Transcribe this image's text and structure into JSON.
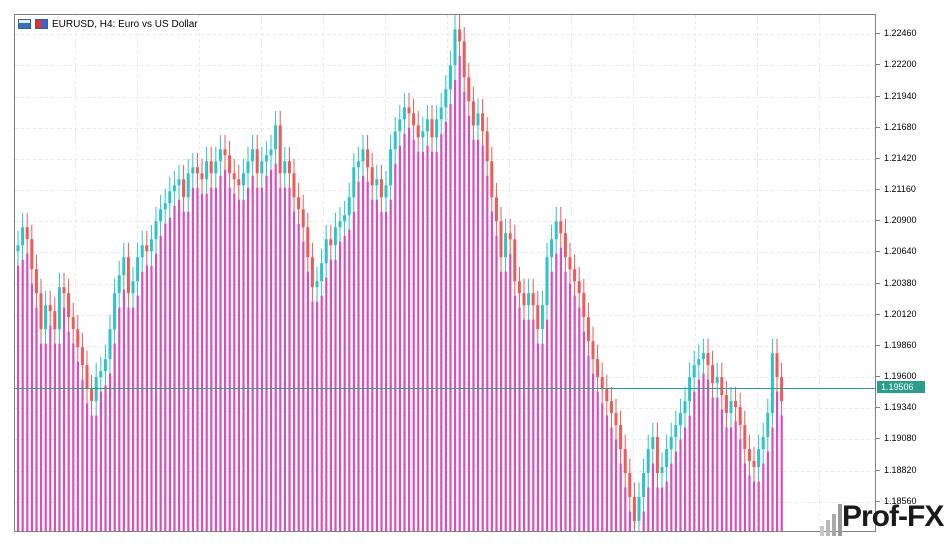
{
  "header": {
    "symbol_title": "EURUSD, H4:  Euro vs US Dollar"
  },
  "colors": {
    "bull": "#2ec4c4",
    "bear": "#ec5a5a",
    "volume": "#d63bb5",
    "grid": "#e8e8e8",
    "price_line": "#2a9d8f"
  },
  "price_tag": "1.19506",
  "logo": {
    "text": "Prof-FX"
  },
  "chart_data": {
    "type": "bar",
    "instrument": "EURUSD",
    "timeframe": "H4",
    "y_ticks": [
      "1.22460",
      "1.22200",
      "1.21940",
      "1.21680",
      "1.21420",
      "1.21160",
      "1.20900",
      "1.20640",
      "1.20380",
      "1.20120",
      "1.19860",
      "1.19600",
      "1.19340",
      "1.19080",
      "1.18820",
      "1.18560"
    ],
    "ylim": [
      1.183,
      1.2262
    ],
    "current_price": 1.19506,
    "grid": true,
    "close": [
      1.207,
      1.2085,
      1.2075,
      1.205,
      1.203,
      1.2,
      1.202,
      1.2015,
      1.2,
      1.2035,
      1.203,
      1.201,
      1.2,
      1.1985,
      1.197,
      1.195,
      1.194,
      1.196,
      1.1965,
      1.1975,
      1.2,
      1.203,
      1.2045,
      1.206,
      1.203,
      1.204,
      1.206,
      1.207,
      1.2065,
      1.2075,
      1.209,
      1.21,
      1.2105,
      1.2115,
      1.212,
      1.2125,
      1.211,
      1.213,
      1.2135,
      1.213,
      1.2125,
      1.214,
      1.213,
      1.214,
      1.215,
      1.2145,
      1.213,
      1.2125,
      1.212,
      1.213,
      1.214,
      1.215,
      1.213,
      1.214,
      1.2145,
      1.215,
      1.217,
      1.213,
      1.214,
      1.213,
      1.211,
      1.21,
      1.2085,
      1.206,
      1.2035,
      1.204,
      1.2055,
      1.2075,
      1.207,
      1.2085,
      1.209,
      1.2095,
      1.211,
      1.2135,
      1.214,
      1.215,
      1.2135,
      1.212,
      1.2125,
      1.211,
      1.212,
      1.215,
      1.2165,
      1.2175,
      1.2185,
      1.218,
      1.217,
      1.216,
      1.2165,
      1.2175,
      1.216,
      1.2175,
      1.2185,
      1.22,
      1.222,
      1.225,
      1.224,
      1.221,
      1.219,
      1.217,
      1.218,
      1.2165,
      1.214,
      1.211,
      1.209,
      1.206,
      1.208,
      1.2075,
      1.204,
      1.203,
      1.202,
      1.203,
      1.202,
      1.2,
      1.202,
      1.206,
      1.2075,
      1.209,
      1.208,
      1.206,
      1.205,
      1.204,
      1.203,
      1.201,
      1.199,
      1.1975,
      1.196,
      1.195,
      1.194,
      1.193,
      1.192,
      1.19,
      1.188,
      1.186,
      1.184,
      1.186,
      1.188,
      1.19,
      1.191,
      1.188,
      1.1885,
      1.19,
      1.191,
      1.192,
      1.193,
      1.194,
      1.196,
      1.197,
      1.1975,
      1.198,
      1.197,
      1.1955,
      1.196,
      1.1945,
      1.193,
      1.194,
      1.1935,
      1.192,
      1.19,
      1.189,
      1.1885,
      1.19,
      1.191,
      1.193,
      1.198,
      1.196,
      1.194
    ]
  }
}
